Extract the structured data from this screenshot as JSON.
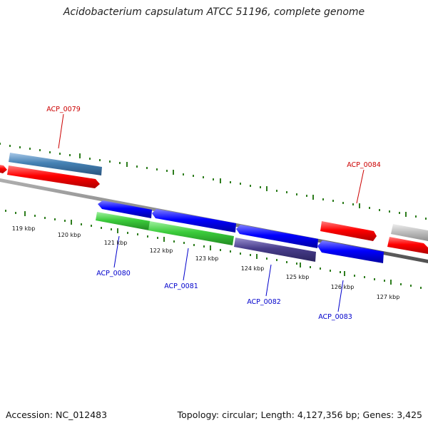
{
  "title": "Acidobacterium capsulatum ATCC 51196, complete genome",
  "footer": {
    "accession": "Accession: NC_012483",
    "summary": "Topology: circular; Length: 4,127,356 bp; Genes: 3,425"
  },
  "scale_labels": [
    "119 kbp",
    "120 kbp",
    "121 kbp",
    "122 kbp",
    "123 kbp",
    "124 kbp",
    "125 kbp",
    "126 kbp",
    "127 kbp"
  ],
  "gene_labels": {
    "ACP_0079": "ACP_0079",
    "ACP_0080": "ACP_0080",
    "ACP_0081": "ACP_0081",
    "ACP_0082": "ACP_0082",
    "ACP_0083": "ACP_0083",
    "ACP_0084": "ACP_0084"
  },
  "colors": {
    "forward_label": "#cc0000",
    "reverse_label": "#0000cc",
    "tick": "#2e7d1e",
    "backbone": "#808080"
  }
}
